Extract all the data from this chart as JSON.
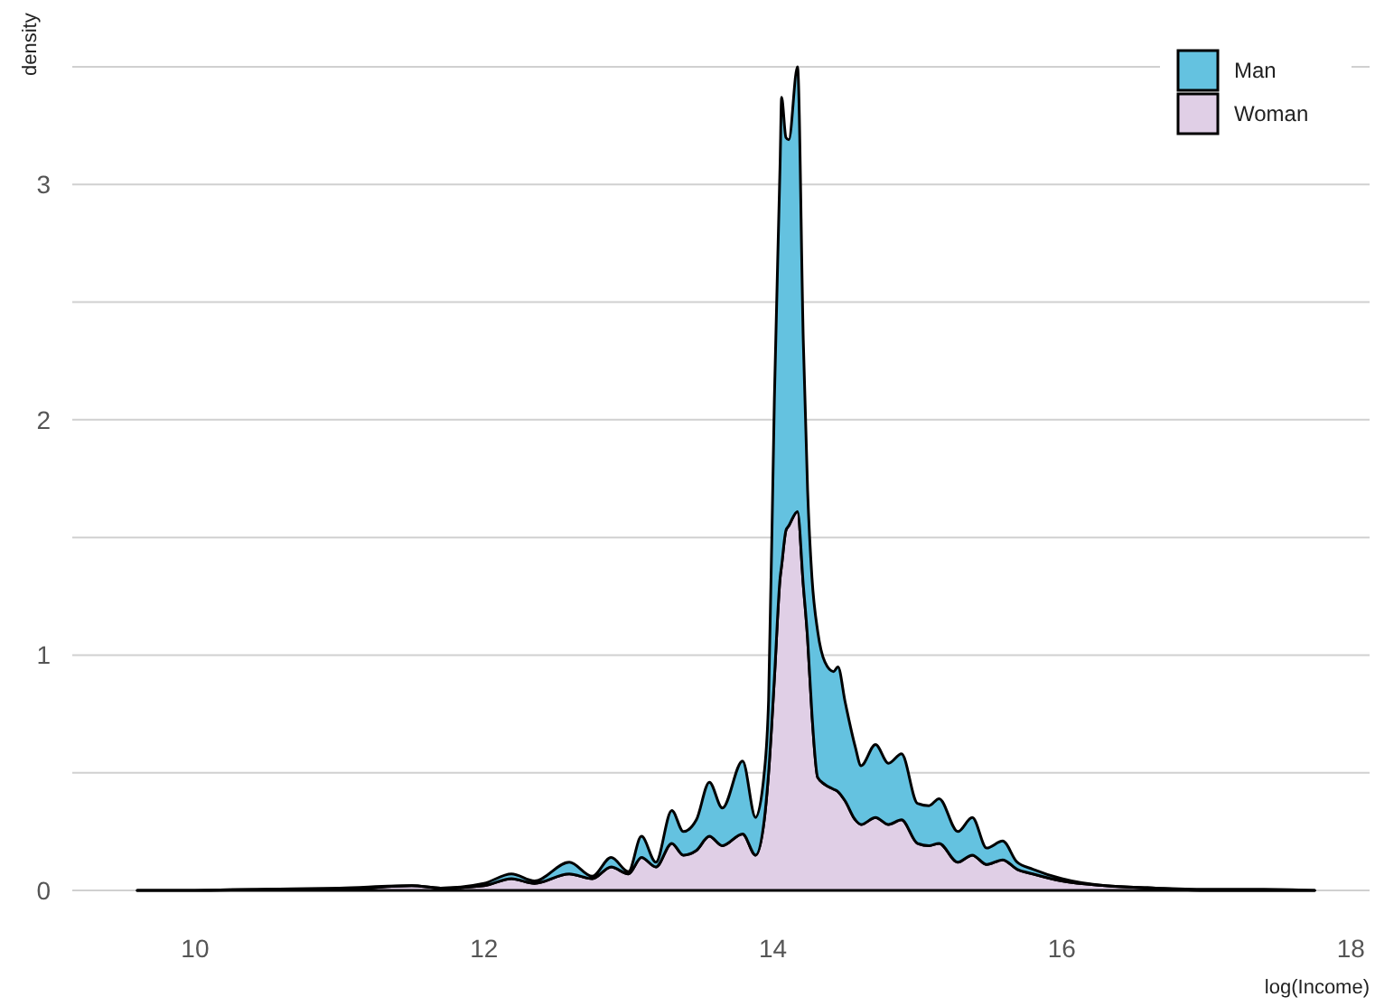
{
  "chart_data": {
    "type": "area",
    "stacked": true,
    "xlabel": "log(Income)",
    "ylabel": "density",
    "x": [
      9.6,
      10,
      10.5,
      11,
      11.5,
      11.7,
      12,
      12.19,
      12.35,
      12.59,
      12.75,
      12.88,
      13,
      13.09,
      13.19,
      13.3,
      13.38,
      13.47,
      13.56,
      13.65,
      13.79,
      13.88,
      13.94,
      13.97,
      14.01,
      14.05,
      14.06,
      14.09,
      14.11,
      14.17,
      14.21,
      14.24,
      14.27,
      14.31,
      14.36,
      14.42,
      14.45,
      14.5,
      14.57,
      14.61,
      14.71,
      14.8,
      14.89,
      15,
      15.08,
      15.15,
      15.28,
      15.38,
      15.48,
      15.59,
      15.69,
      15.8,
      16,
      16.3,
      16.65,
      17,
      17.4,
      17.75
    ],
    "series": [
      {
        "name": "Woman",
        "color": "#e0cfe6",
        "values": [
          0,
          0,
          0.005,
          0.005,
          0.02,
          0.01,
          0.02,
          0.05,
          0.03,
          0.07,
          0.05,
          0.1,
          0.07,
          0.14,
          0.1,
          0.2,
          0.15,
          0.17,
          0.23,
          0.19,
          0.24,
          0.15,
          0.3,
          0.5,
          0.9,
          1.33,
          1.38,
          1.53,
          1.55,
          1.61,
          1.3,
          1.07,
          0.75,
          0.48,
          0.45,
          0.43,
          0.42,
          0.38,
          0.3,
          0.28,
          0.31,
          0.28,
          0.3,
          0.2,
          0.19,
          0.2,
          0.12,
          0.15,
          0.11,
          0.13,
          0.09,
          0.07,
          0.04,
          0.02,
          0.01,
          0,
          0,
          0
        ]
      },
      {
        "name": "Man",
        "color": "#64c2e0",
        "values": [
          0,
          0,
          0,
          0.005,
          0,
          0,
          0.01,
          0.02,
          0.01,
          0.05,
          0.01,
          0.04,
          0.01,
          0.09,
          0.02,
          0.14,
          0.1,
          0.13,
          0.23,
          0.16,
          0.31,
          0.16,
          0.2,
          0.31,
          1.19,
          1.77,
          1.99,
          1.67,
          1.64,
          1.89,
          1.04,
          0.63,
          0.58,
          0.62,
          0.52,
          0.5,
          0.53,
          0.42,
          0.31,
          0.25,
          0.31,
          0.26,
          0.28,
          0.17,
          0.17,
          0.19,
          0.13,
          0.16,
          0.07,
          0.08,
          0.03,
          0.02,
          0.01,
          0,
          0,
          0.005,
          0.005,
          0
        ]
      }
    ],
    "xlim": [
      9.15,
      18.13
    ],
    "ylim": [
      0,
      3.5
    ],
    "xticks": [
      10,
      12,
      14,
      16,
      18
    ],
    "yticks": [
      0,
      {
        "value": 0.5,
        "label": null
      },
      1,
      {
        "value": 1.5,
        "label": null
      },
      2,
      {
        "value": 2.5,
        "label": null
      },
      3,
      {
        "value": 3.5,
        "label": null
      }
    ],
    "grid": "y",
    "legend": "top right"
  }
}
